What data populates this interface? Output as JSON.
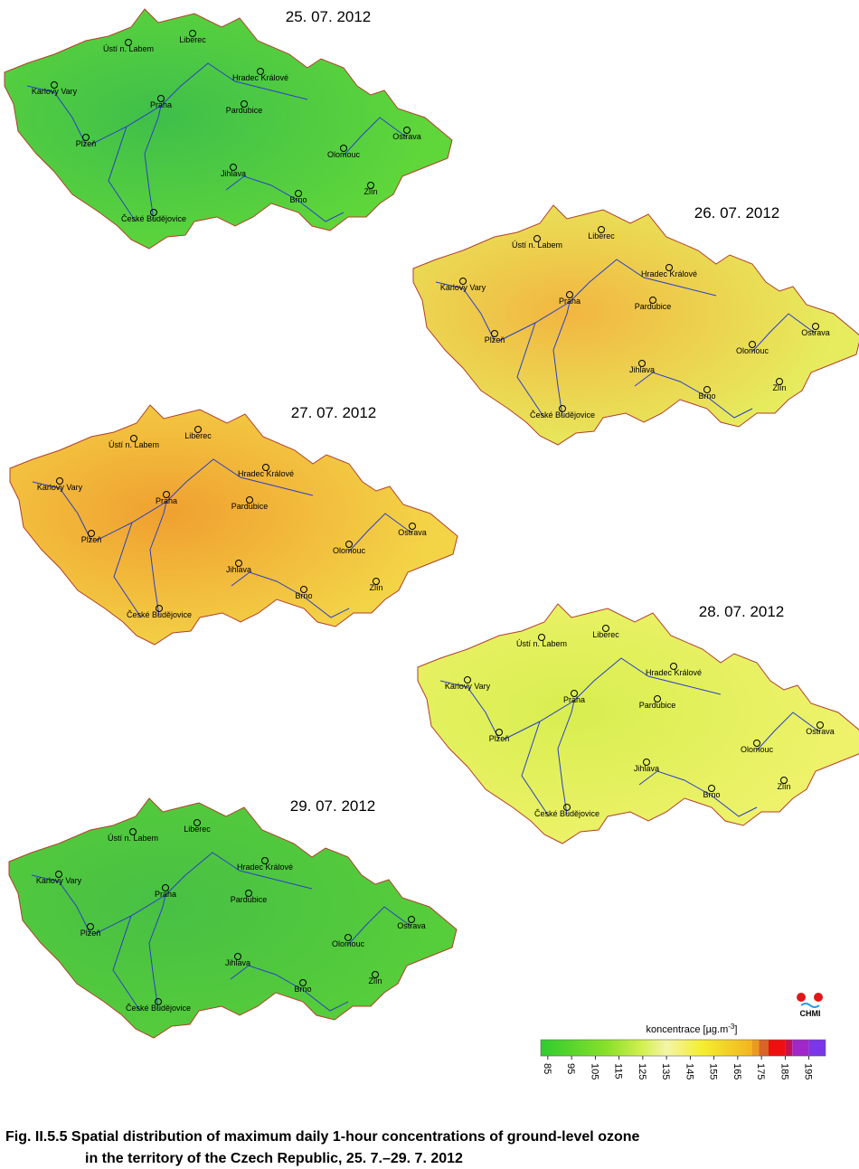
{
  "maps": [
    {
      "date": "25. 07. 2012",
      "color": "#5fd63a",
      "accent": "#3fbf4a"
    },
    {
      "date": "26. 07. 2012",
      "color": "#e6ec5e",
      "accent": "#f2b640"
    },
    {
      "date": "27. 07. 2012",
      "color": "#f3d447",
      "accent": "#f0a030"
    },
    {
      "date": "28. 07. 2012",
      "color": "#eef26a",
      "accent": "#d8ee50"
    },
    {
      "date": "29. 07. 2012",
      "color": "#56cd3a",
      "accent": "#48c044"
    }
  ],
  "cities": [
    "Ústí n. Labem",
    "Liberec",
    "Karlovy Vary",
    "Hradec Králové",
    "Praha",
    "Pardubice",
    "Plzeň",
    "Ostrava",
    "Olomouc",
    "Jihlava",
    "Zlín",
    "Brno",
    "České Budějovice"
  ],
  "legend": {
    "title": [
      "koncentrace [µg.m",
      "-3",
      "]"
    ],
    "xlim": [
      82,
      202
    ],
    "ticks": [
      85,
      95,
      105,
      115,
      125,
      135,
      145,
      155,
      165,
      175,
      185,
      195
    ],
    "gradient": [
      {
        "value": 82,
        "color": "#2ecc2e"
      },
      {
        "value": 110,
        "color": "#8ae02a"
      },
      {
        "value": 125,
        "color": "#d4f050"
      },
      {
        "value": 135,
        "color": "#f4f4a8"
      },
      {
        "value": 150,
        "color": "#f4ee30"
      },
      {
        "value": 171,
        "color": "#f2b420"
      }
    ],
    "blocks": [
      {
        "from": 171,
        "to": 174,
        "color": "#ea9a20"
      },
      {
        "from": 174,
        "to": 178,
        "color": "#d86428"
      },
      {
        "from": 178,
        "to": 185,
        "color": "#ee1010"
      },
      {
        "from": 185,
        "to": 188,
        "color": "#c81050"
      },
      {
        "from": 188,
        "to": 195,
        "color": "#a028c8"
      },
      {
        "from": 195,
        "to": 202,
        "color": "#7a36e8"
      }
    ]
  },
  "logo": "CHMI",
  "caption": [
    "Fig. II.5.5  Spatial distribution of maximum daily 1-hour concentrations of ground-level ozone",
    "in the territory of the Czech Republic, 25. 7.–29. 7. 2012"
  ]
}
